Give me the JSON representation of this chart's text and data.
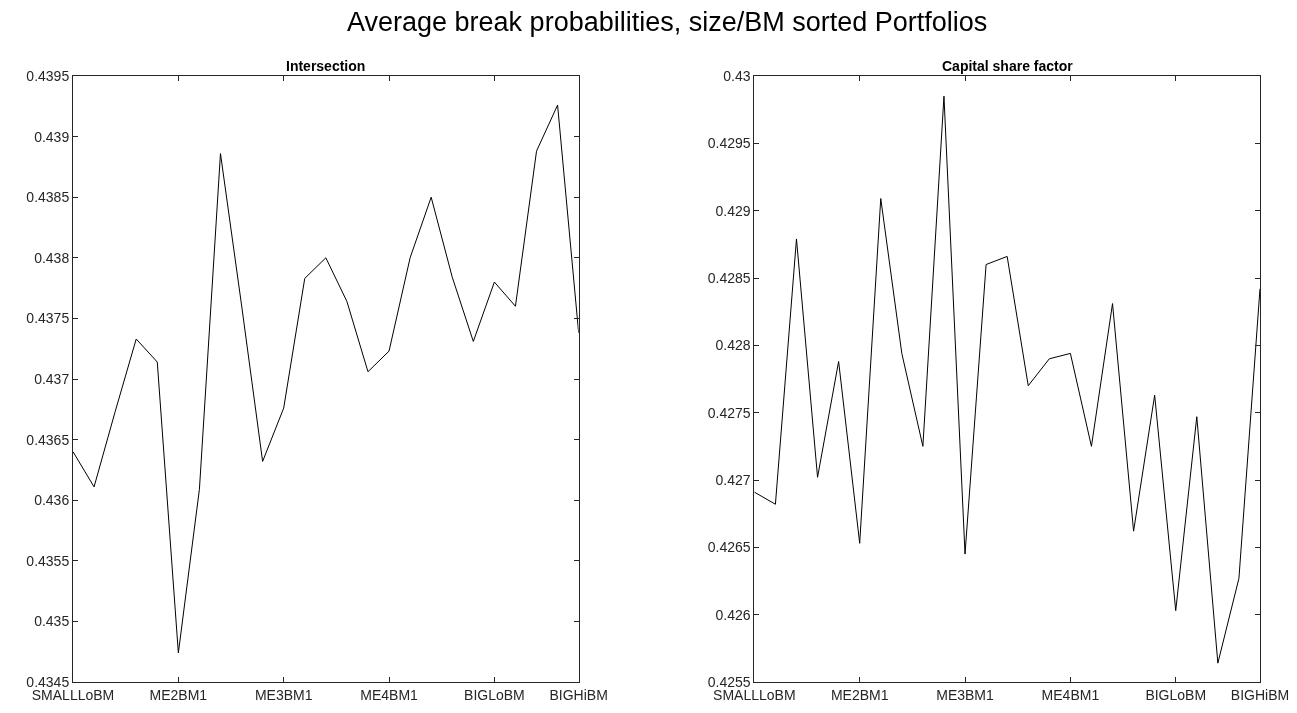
{
  "chart_data": [
    {
      "type": "line",
      "title": "Intersection",
      "annotations": [
        "Average break probabilities, size/BM sorted Portfolios"
      ],
      "categories": [
        "SMALLLoBM",
        null,
        null,
        null,
        null,
        "ME2BM1",
        null,
        null,
        null,
        null,
        "ME3BM1",
        null,
        null,
        null,
        null,
        "ME4BM1",
        null,
        null,
        null,
        null,
        "BIGLoBM",
        null,
        null,
        null,
        "BIGHiBM"
      ],
      "series": [
        {
          "color": "#000000",
          "values": [
            0.4364,
            0.43611,
            0.43673,
            0.43733,
            0.43714,
            0.43474,
            0.43609,
            0.43886,
            0.43761,
            0.43632,
            0.43676,
            0.43783,
            0.438,
            0.43764,
            0.43706,
            0.43723,
            0.438,
            0.4385,
            0.43784,
            0.43731,
            0.4378,
            0.4376,
            0.43888,
            0.43926,
            0.43738
          ]
        }
      ],
      "ylim": [
        0.4345,
        0.4395
      ],
      "yticks": [
        0.4345,
        0.435,
        0.4355,
        0.436,
        0.4365,
        0.437,
        0.4375,
        0.438,
        0.4385,
        0.439,
        0.4395
      ],
      "marker": "none",
      "line_style": "solid"
    },
    {
      "type": "line",
      "title": "Capital share factor",
      "categories": [
        "SMALLLoBM",
        null,
        null,
        null,
        null,
        "ME2BM1",
        null,
        null,
        null,
        null,
        "ME3BM1",
        null,
        null,
        null,
        null,
        "ME4BM1",
        null,
        null,
        null,
        null,
        "BIGLoBM",
        null,
        null,
        null,
        "BIGHiBM"
      ],
      "series": [
        {
          "color": "#000000",
          "values": [
            0.42691,
            0.42682,
            0.42879,
            0.42702,
            0.42788,
            0.42653,
            0.42909,
            0.42794,
            0.42725,
            0.42985,
            0.42645,
            0.4286,
            0.42866,
            0.4277,
            0.4279,
            0.42794,
            0.42725,
            0.42831,
            0.42662,
            0.42763,
            0.42603,
            0.42747,
            0.42564,
            0.42627,
            0.42842
          ]
        }
      ],
      "ylim": [
        0.4255,
        0.43
      ],
      "yticks": [
        0.4255,
        0.426,
        0.4265,
        0.427,
        0.4275,
        0.428,
        0.4285,
        0.429,
        0.4295,
        0.43
      ],
      "marker": "none",
      "line_style": "solid"
    }
  ]
}
